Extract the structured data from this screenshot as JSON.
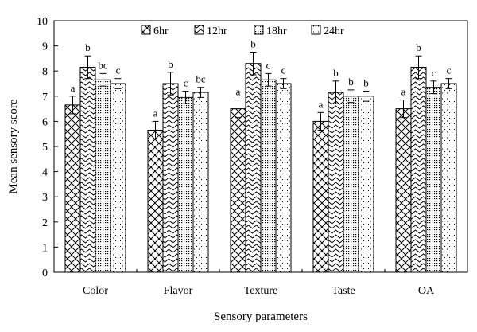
{
  "chart_data": {
    "type": "bar",
    "xlabel": "Sensory parameters",
    "ylabel": "Mean sensory score",
    "ylim": [
      0,
      10
    ],
    "yticks": [
      "0",
      "1",
      "2",
      "3",
      "4",
      "5",
      "6",
      "7",
      "8",
      "9",
      "10"
    ],
    "categories": [
      "Color",
      "Flavor",
      "Texture",
      "Taste",
      "OA"
    ],
    "legend_position": "top",
    "series": [
      {
        "name": "6hr",
        "pattern": "crosshatch",
        "values": [
          6.65,
          5.65,
          6.5,
          6.0,
          6.5
        ],
        "errors": [
          0.35,
          0.35,
          0.35,
          0.35,
          0.35
        ],
        "letters": [
          "a",
          "a",
          "a",
          "a",
          "a"
        ]
      },
      {
        "name": "12hr",
        "pattern": "wave",
        "values": [
          8.15,
          7.5,
          8.3,
          7.15,
          8.15
        ],
        "errors": [
          0.45,
          0.45,
          0.45,
          0.45,
          0.45
        ],
        "letters": [
          "b",
          "b",
          "b",
          "b",
          "b"
        ]
      },
      {
        "name": "18hr",
        "pattern": "dense-dots",
        "values": [
          7.65,
          6.95,
          7.65,
          7.0,
          7.35
        ],
        "errors": [
          0.25,
          0.25,
          0.25,
          0.25,
          0.25
        ],
        "letters": [
          "bc",
          "c",
          "c",
          "b",
          "c"
        ]
      },
      {
        "name": "24hr",
        "pattern": "sparse-dots",
        "values": [
          7.5,
          7.15,
          7.5,
          7.0,
          7.5
        ],
        "errors": [
          0.2,
          0.2,
          0.2,
          0.2,
          0.2
        ],
        "letters": [
          "c",
          "bc",
          "c",
          "b",
          "c"
        ]
      }
    ]
  }
}
